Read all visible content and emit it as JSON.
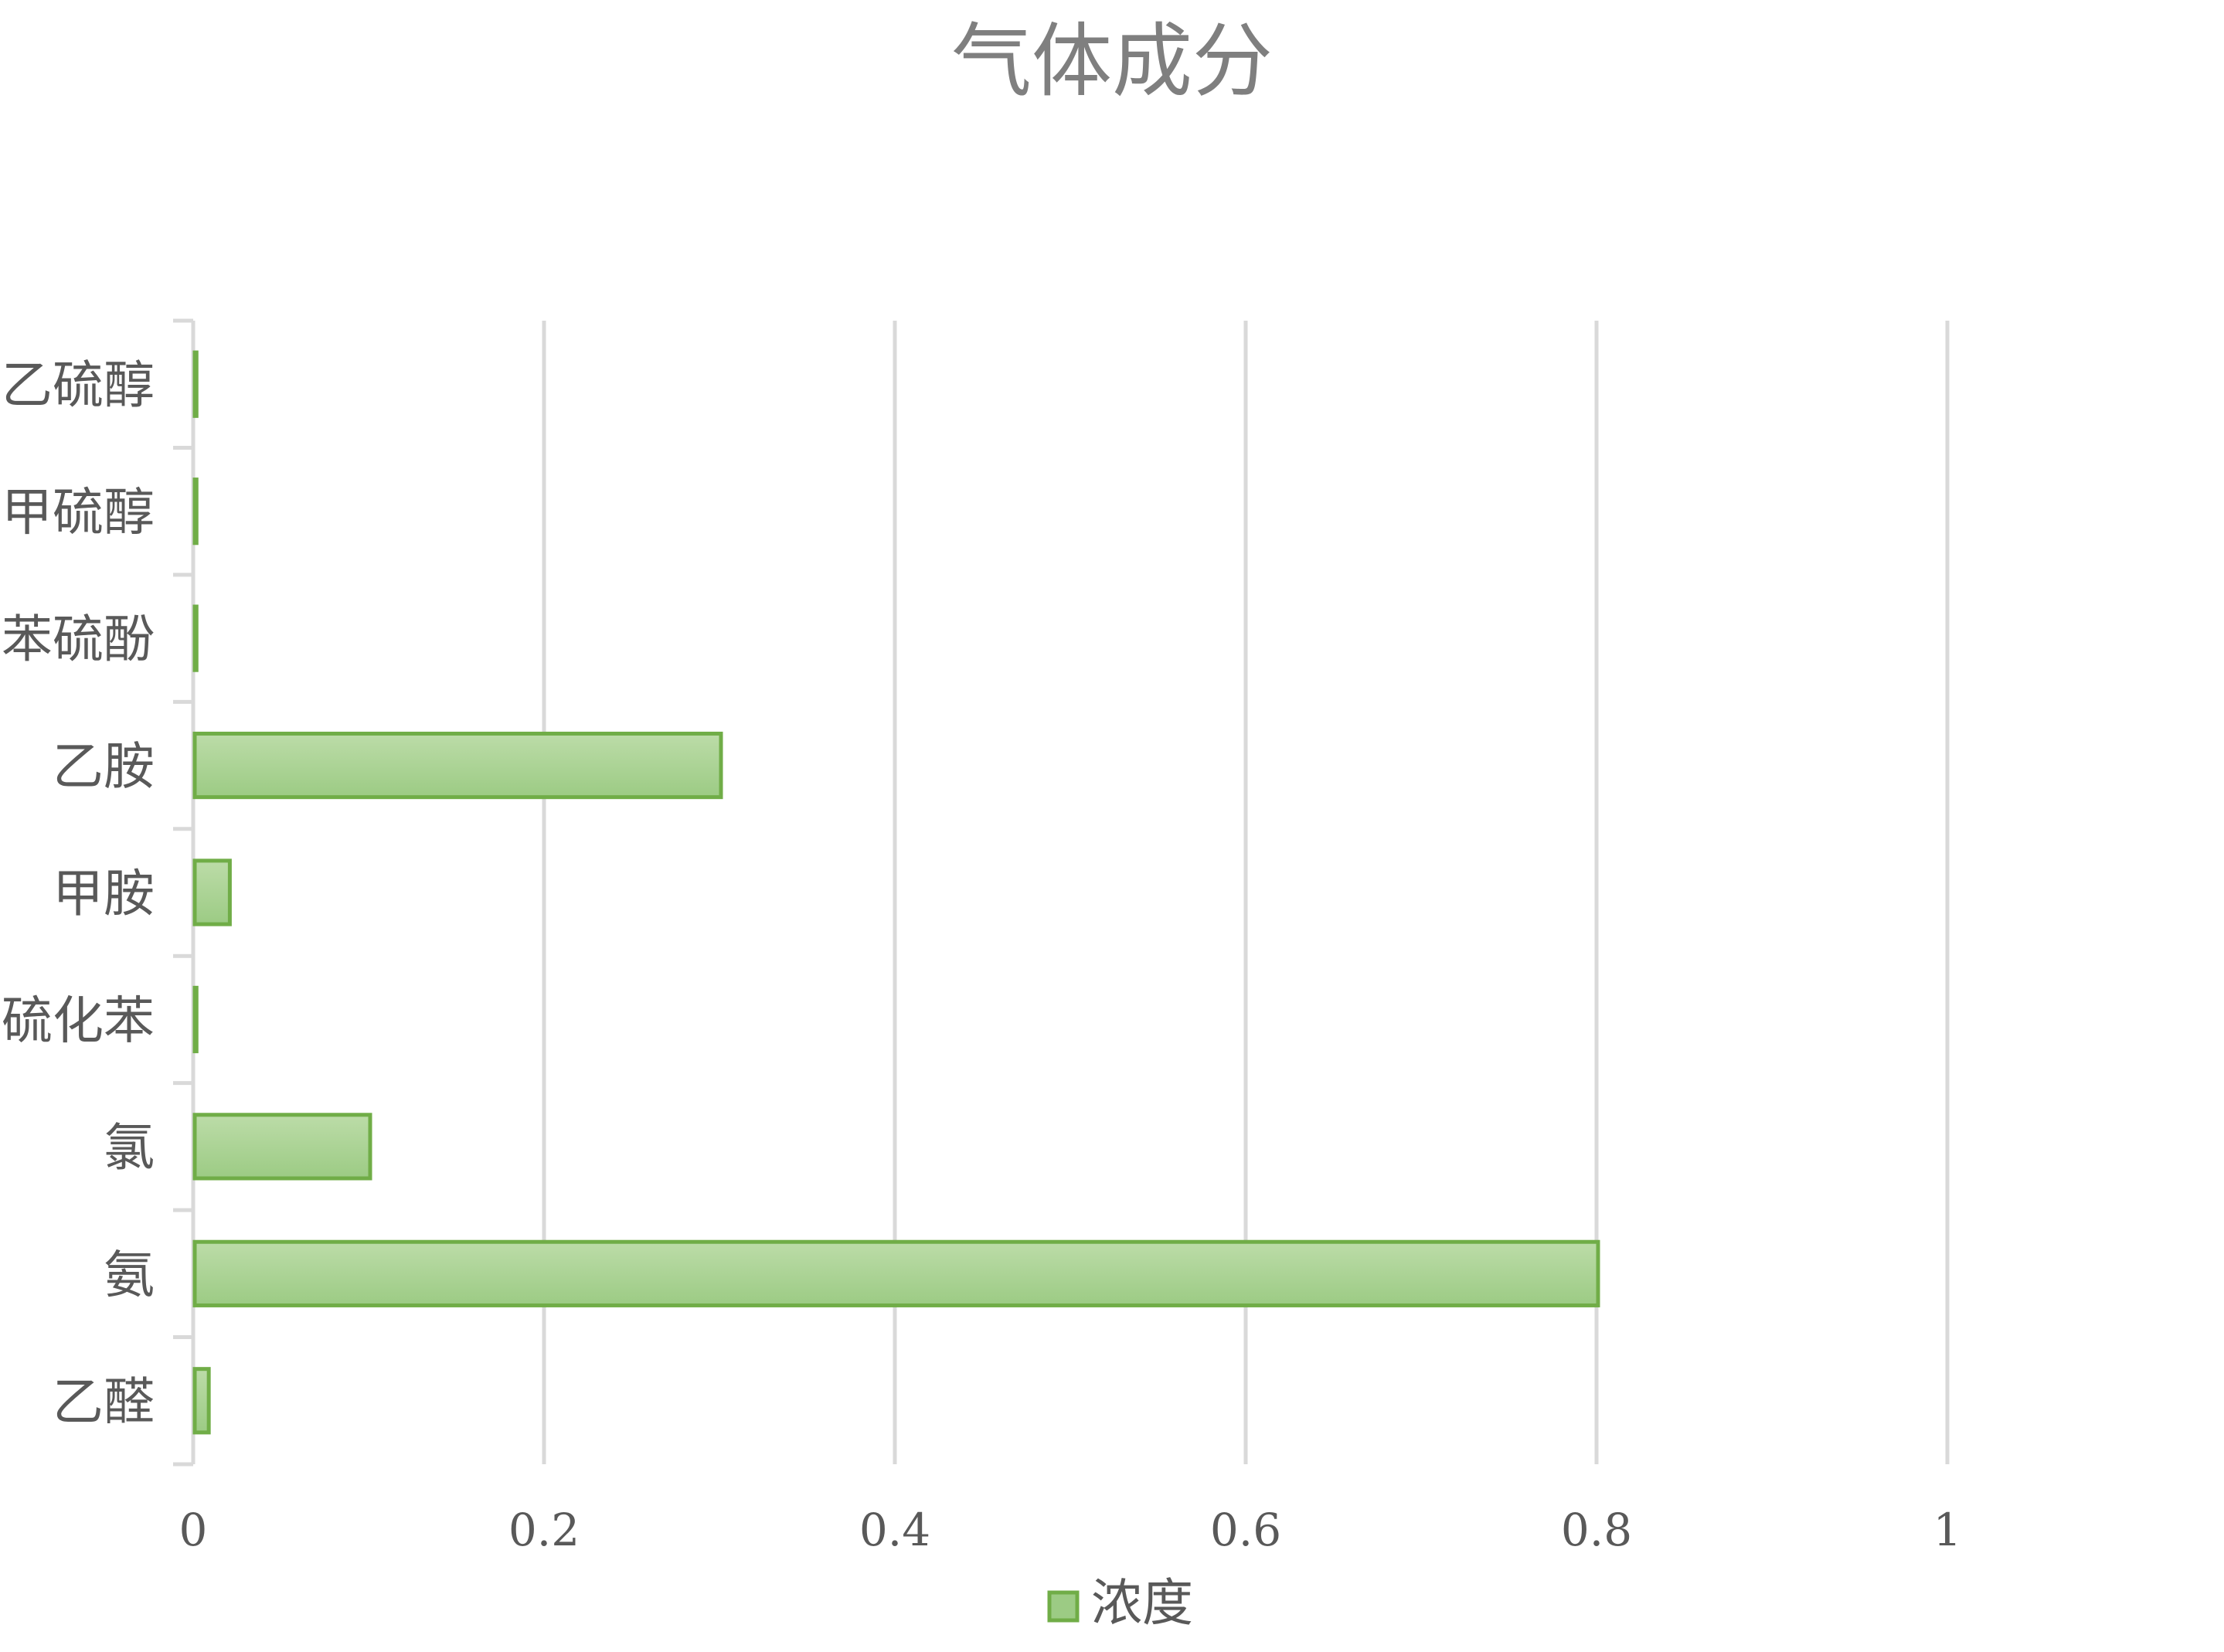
{
  "chart_data": {
    "type": "bar",
    "orientation": "horizontal",
    "title": "气体成分",
    "xlabel": "",
    "ylabel": "",
    "categories": [
      "乙醛",
      "氨",
      "氯",
      "硫化苯",
      "甲胺",
      "乙胺",
      "苯硫酚",
      "甲硫醇",
      "乙硫醇"
    ],
    "series": [
      {
        "name": "浓度",
        "values": [
          0.008,
          0.8,
          0.1,
          0.001,
          0.02,
          0.3,
          0.001,
          0.001,
          0.001
        ]
      }
    ],
    "xlim": [
      0,
      1.2
    ],
    "xticks": [
      0,
      0.2,
      0.4,
      0.6,
      0.8,
      1
    ],
    "xtick_labels": [
      "0",
      "0.2",
      "0.4",
      "0.6",
      "0.8",
      "1"
    ],
    "grid": "vertical",
    "legend_position": "bottom",
    "colors": {
      "bar_fill_top": "#bcdca8",
      "bar_fill_bottom": "#9ccb84",
      "bar_stroke": "#70ad47",
      "grid": "#d9d9d9",
      "axis": "#d9d9d9",
      "text": "#595959",
      "title": "#7f7f7f"
    }
  }
}
